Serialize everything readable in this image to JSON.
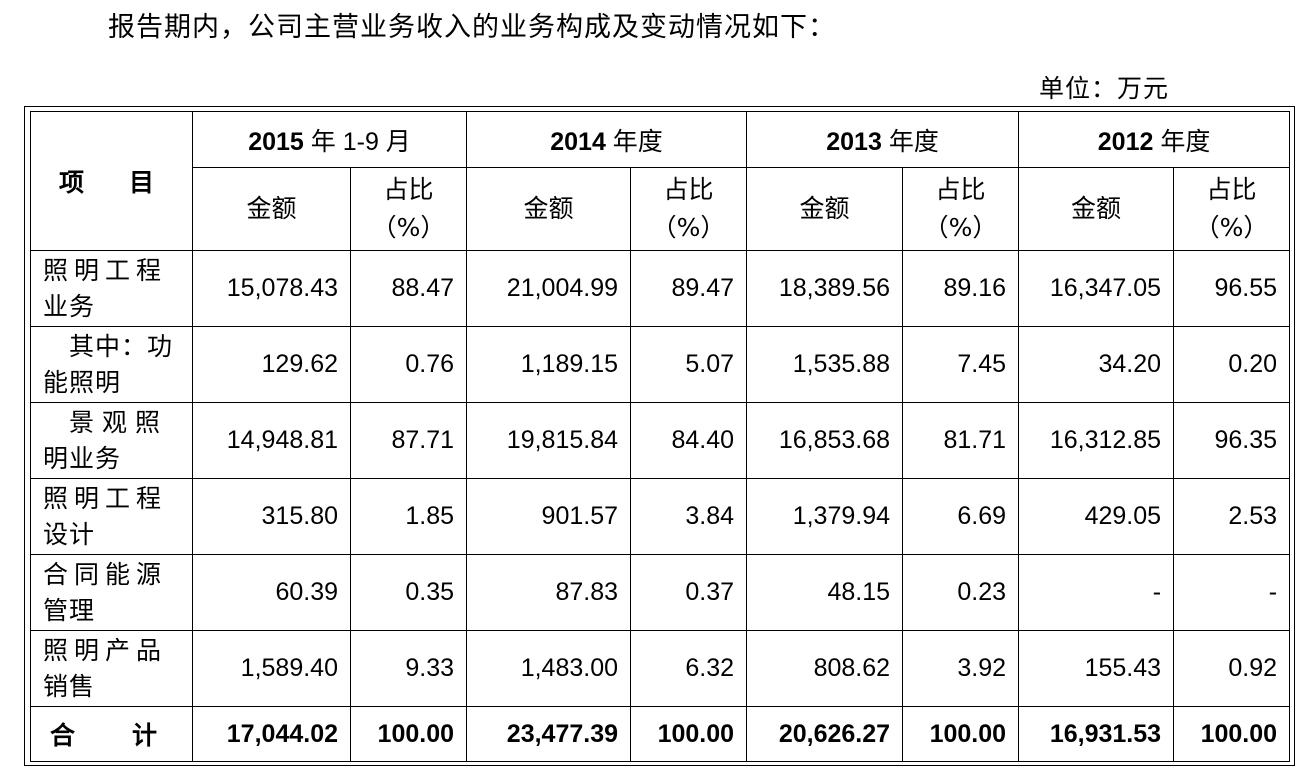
{
  "intro": "报告期内，公司主营业务收入的业务构成及变动情况如下：",
  "unit": "单位：万元",
  "table": {
    "item_header": "项　目",
    "periods": [
      {
        "year": "2015",
        "suffix": " 年 1-9 月"
      },
      {
        "year": "2014",
        "suffix": " 年度"
      },
      {
        "year": "2013",
        "suffix": " 年度"
      },
      {
        "year": "2012",
        "suffix": " 年度"
      }
    ],
    "amount_header": "金额",
    "ratio_header_1": "占比",
    "ratio_header_2": "（%）",
    "rows": [
      {
        "label_1": "照明工程",
        "label_2": "业务",
        "cells": [
          "15,078.43",
          "88.47",
          "21,004.99",
          "89.47",
          "18,389.56",
          "89.16",
          "16,347.05",
          "96.55"
        ]
      },
      {
        "label_1": "其中：功",
        "label_2": "能照明",
        "cells": [
          "129.62",
          "0.76",
          "1,189.15",
          "5.07",
          "1,535.88",
          "7.45",
          "34.20",
          "0.20"
        ]
      },
      {
        "label_1": "景观照",
        "label_2": "明业务",
        "cells": [
          "14,948.81",
          "87.71",
          "19,815.84",
          "84.40",
          "16,853.68",
          "81.71",
          "16,312.85",
          "96.35"
        ]
      },
      {
        "label_1": "照明工程",
        "label_2": "设计",
        "cells": [
          "315.80",
          "1.85",
          "901.57",
          "3.84",
          "1,379.94",
          "6.69",
          "429.05",
          "2.53"
        ]
      },
      {
        "label_1": "合同能源",
        "label_2": "管理",
        "cells": [
          "60.39",
          "0.35",
          "87.83",
          "0.37",
          "48.15",
          "0.23",
          "-",
          "-"
        ]
      },
      {
        "label_1": "照明产品",
        "label_2": "销售",
        "cells": [
          "1,589.40",
          "9.33",
          "1,483.00",
          "6.32",
          "808.62",
          "3.92",
          "155.43",
          "0.92"
        ]
      }
    ],
    "total": {
      "label": "合　计",
      "cells": [
        "17,044.02",
        "100.00",
        "23,477.39",
        "100.00",
        "20,626.27",
        "100.00",
        "16,931.53",
        "100.00"
      ]
    }
  }
}
